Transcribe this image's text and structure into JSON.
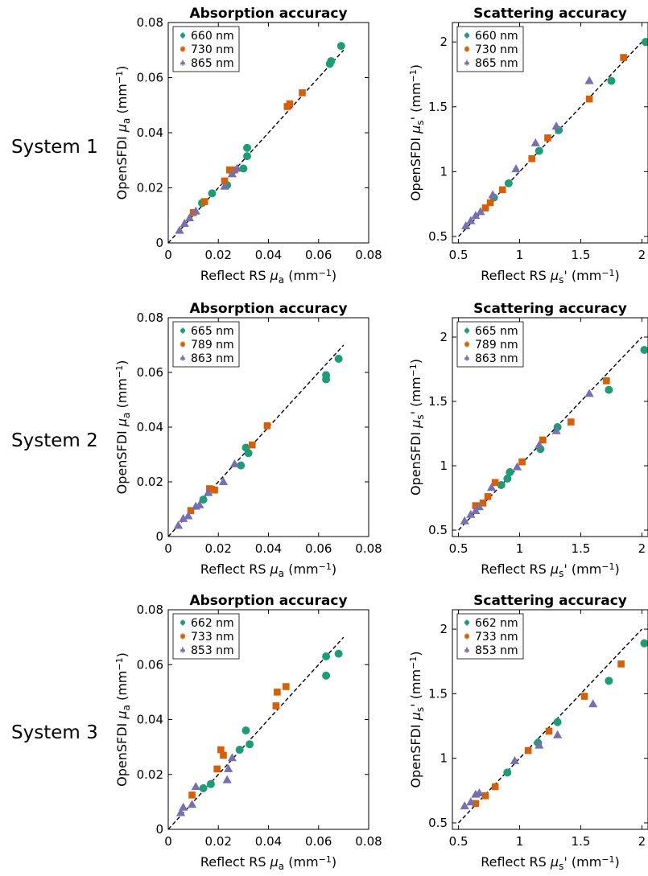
{
  "colors": {
    "s0": "#1b9e77",
    "s1": "#d95f02",
    "s2": "#7570b3"
  },
  "rows": [
    {
      "label": "System 1"
    },
    {
      "label": "System 2"
    },
    {
      "label": "System 3"
    }
  ],
  "chart_data": [
    {
      "type": "scatter",
      "row": 0,
      "kind": "absorption",
      "title": "Absorption accuracy",
      "xlabel": "Reflect RS μa (mm⁻¹)",
      "ylabel": "OpenSFDI μa (mm⁻¹)",
      "xlim": [
        0,
        0.08
      ],
      "ylim": [
        0,
        0.08
      ],
      "xticks": [
        0,
        0.02,
        0.04,
        0.06,
        0.08
      ],
      "xtick_labels": [
        "0",
        "0.02",
        "0.04",
        "0.06",
        "0.08"
      ],
      "yticks": [
        0,
        0.02,
        0.04,
        0.06,
        0.08
      ],
      "ytick_labels": [
        "0",
        "0.02",
        "0.04",
        "0.06",
        "0.08"
      ],
      "reference_line": [
        [
          0,
          0.07
        ],
        [
          0,
          0.07
        ]
      ],
      "legend": "top-left",
      "series": [
        {
          "name": "660 nm",
          "marker": "circle",
          "x": [
            0.0135,
            0.0175,
            0.0235,
            0.0255,
            0.03,
            0.0315,
            0.0315,
            0.0645,
            0.065,
            0.069
          ],
          "y": [
            0.0145,
            0.018,
            0.021,
            0.026,
            0.027,
            0.0315,
            0.0345,
            0.065,
            0.066,
            0.0715
          ]
        },
        {
          "name": "730 nm",
          "marker": "square",
          "x": [
            0.01,
            0.0145,
            0.0225,
            0.0245,
            0.0265,
            0.0475,
            0.0485,
            0.0535
          ],
          "y": [
            0.011,
            0.015,
            0.0225,
            0.0265,
            0.0265,
            0.0495,
            0.0505,
            0.0545
          ]
        },
        {
          "name": "865 nm",
          "marker": "triangle",
          "x": [
            0.0045,
            0.0065,
            0.0085,
            0.011,
            0.0225,
            0.0255,
            0.0275
          ],
          "y": [
            0.0045,
            0.007,
            0.009,
            0.0115,
            0.0205,
            0.025,
            0.027
          ]
        }
      ]
    },
    {
      "type": "scatter",
      "row": 0,
      "kind": "scattering",
      "title": "Scattering accuracy",
      "xlabel": "Reflect RS μs' (mm⁻¹)",
      "ylabel": "OpenSFDI μs' (mm⁻¹)",
      "xlim": [
        0.45,
        2.05
      ],
      "ylim": [
        0.45,
        2.15
      ],
      "xticks": [
        0.5,
        1,
        1.5,
        2
      ],
      "xtick_labels": [
        "0.5",
        "1",
        "1.5",
        "2"
      ],
      "yticks": [
        0.5,
        1,
        1.5,
        2
      ],
      "ytick_labels": [
        "0.5",
        "1",
        "1.5",
        "2"
      ],
      "reference_line": [
        [
          0.5,
          2.0
        ],
        [
          0.5,
          2.0
        ]
      ],
      "legend": "top-left",
      "series": [
        {
          "name": "660 nm",
          "marker": "circle",
          "x": [
            0.79,
            0.91,
            1.16,
            1.32,
            1.75,
            2.03
          ],
          "y": [
            0.8,
            0.91,
            1.16,
            1.32,
            1.7,
            2.0
          ]
        },
        {
          "name": "730 nm",
          "marker": "square",
          "x": [
            0.72,
            0.76,
            0.86,
            1.1,
            1.23,
            1.57,
            1.85
          ],
          "y": [
            0.72,
            0.76,
            0.86,
            1.1,
            1.26,
            1.56,
            1.88
          ]
        },
        {
          "name": "865 nm",
          "marker": "triangle",
          "x": [
            0.56,
            0.6,
            0.64,
            0.68,
            0.78,
            0.97,
            1.13,
            1.3,
            1.57
          ],
          "y": [
            0.58,
            0.62,
            0.66,
            0.69,
            0.82,
            1.02,
            1.22,
            1.35,
            1.7
          ]
        }
      ]
    },
    {
      "type": "scatter",
      "row": 1,
      "kind": "absorption",
      "title": "Absorption accuracy",
      "xlabel": "Reflect RS μa (mm⁻¹)",
      "ylabel": "OpenSFDI μa (mm⁻¹)",
      "xlim": [
        0,
        0.08
      ],
      "ylim": [
        0,
        0.08
      ],
      "xticks": [
        0,
        0.02,
        0.04,
        0.06,
        0.08
      ],
      "xtick_labels": [
        "0",
        "0.02",
        "0.04",
        "0.06",
        "0.08"
      ],
      "yticks": [
        0,
        0.02,
        0.04,
        0.06,
        0.08
      ],
      "ytick_labels": [
        "0",
        "0.02",
        "0.04",
        "0.06",
        "0.08"
      ],
      "reference_line": [
        [
          0,
          0.07
        ],
        [
          0,
          0.07
        ]
      ],
      "legend": "top-left",
      "series": [
        {
          "name": "665 nm",
          "marker": "circle",
          "x": [
            0.014,
            0.029,
            0.031,
            0.032,
            0.063,
            0.063,
            0.068
          ],
          "y": [
            0.0135,
            0.026,
            0.0325,
            0.0305,
            0.0575,
            0.059,
            0.065
          ]
        },
        {
          "name": "789 nm",
          "marker": "square",
          "x": [
            0.009,
            0.0165,
            0.0185,
            0.0335,
            0.0395
          ],
          "y": [
            0.0095,
            0.0175,
            0.017,
            0.0335,
            0.0405
          ]
        },
        {
          "name": "863 nm",
          "marker": "triangle",
          "x": [
            0.004,
            0.006,
            0.008,
            0.011,
            0.0125,
            0.016,
            0.022,
            0.0265
          ],
          "y": [
            0.004,
            0.0065,
            0.0075,
            0.011,
            0.0115,
            0.016,
            0.02,
            0.0265
          ]
        }
      ]
    },
    {
      "type": "scatter",
      "row": 1,
      "kind": "scattering",
      "title": "Scattering accuracy",
      "xlabel": "Reflect RS μs' (mm⁻¹)",
      "ylabel": "OpenSFDI μs' (mm⁻¹)",
      "xlim": [
        0.45,
        2.05
      ],
      "ylim": [
        0.45,
        2.15
      ],
      "xticks": [
        0.5,
        1,
        1.5,
        2
      ],
      "xtick_labels": [
        "0.5",
        "1",
        "1.5",
        "2"
      ],
      "yticks": [
        0.5,
        1,
        1.5,
        2
      ],
      "ytick_labels": [
        "0.5",
        "1",
        "1.5",
        "2"
      ],
      "reference_line": [
        [
          0.5,
          2.0
        ],
        [
          0.5,
          2.0
        ]
      ],
      "legend": "top-left",
      "series": [
        {
          "name": "665 nm",
          "marker": "circle",
          "x": [
            0.85,
            0.9,
            0.92,
            1.17,
            1.31,
            1.73,
            2.02
          ],
          "y": [
            0.85,
            0.9,
            0.95,
            1.13,
            1.3,
            1.59,
            1.9
          ]
        },
        {
          "name": "789 nm",
          "marker": "square",
          "x": [
            0.64,
            0.7,
            0.74,
            0.8,
            1.02,
            1.19,
            1.42,
            1.71
          ],
          "y": [
            0.69,
            0.71,
            0.76,
            0.87,
            1.03,
            1.2,
            1.34,
            1.66
          ]
        },
        {
          "name": "863 nm",
          "marker": "triangle",
          "x": [
            0.55,
            0.6,
            0.64,
            0.67,
            0.77,
            0.98,
            1.16,
            1.3,
            1.57
          ],
          "y": [
            0.57,
            0.62,
            0.65,
            0.68,
            0.83,
            0.99,
            1.16,
            1.27,
            1.56
          ]
        }
      ]
    },
    {
      "type": "scatter",
      "row": 2,
      "kind": "absorption",
      "title": "Absorption accuracy",
      "xlabel": "Reflect RS μa (mm⁻¹)",
      "ylabel": "OpenSFDI μa (mm⁻¹)",
      "xlim": [
        0,
        0.08
      ],
      "ylim": [
        0,
        0.08
      ],
      "xticks": [
        0,
        0.02,
        0.04,
        0.06,
        0.08
      ],
      "xtick_labels": [
        "0",
        "0.02",
        "0.04",
        "0.06",
        "0.08"
      ],
      "yticks": [
        0,
        0.02,
        0.04,
        0.06,
        0.08
      ],
      "ytick_labels": [
        "0",
        "0.02",
        "0.04",
        "0.06",
        "0.08"
      ],
      "reference_line": [
        [
          0,
          0.07
        ],
        [
          0,
          0.07
        ]
      ],
      "legend": "top-left",
      "series": [
        {
          "name": "662 nm",
          "marker": "circle",
          "x": [
            0.014,
            0.017,
            0.0285,
            0.031,
            0.0325,
            0.063,
            0.063,
            0.068
          ],
          "y": [
            0.015,
            0.0165,
            0.029,
            0.036,
            0.031,
            0.056,
            0.063,
            0.064
          ]
        },
        {
          "name": "733 nm",
          "marker": "square",
          "x": [
            0.0095,
            0.0195,
            0.021,
            0.022,
            0.043,
            0.0435,
            0.047
          ],
          "y": [
            0.0125,
            0.022,
            0.029,
            0.027,
            0.045,
            0.05,
            0.052
          ]
        },
        {
          "name": "853 nm",
          "marker": "triangle",
          "x": [
            0.005,
            0.006,
            0.0095,
            0.011,
            0.0235,
            0.024,
            0.0255
          ],
          "y": [
            0.006,
            0.008,
            0.009,
            0.0155,
            0.018,
            0.022,
            0.026
          ]
        }
      ]
    },
    {
      "type": "scatter",
      "row": 2,
      "kind": "scattering",
      "title": "Scattering accuracy",
      "xlabel": "Reflect RS μs' (mm⁻¹)",
      "ylabel": "OpenSFDI μs' (mm⁻¹)",
      "xlim": [
        0.45,
        2.05
      ],
      "ylim": [
        0.45,
        2.15
      ],
      "xticks": [
        0.5,
        1,
        1.5,
        2
      ],
      "xtick_labels": [
        "0.5",
        "1",
        "1.5",
        "2"
      ],
      "yticks": [
        0.5,
        1,
        1.5,
        2
      ],
      "ytick_labels": [
        "0.5",
        "1",
        "1.5",
        "2"
      ],
      "reference_line": [
        [
          0.5,
          2.0
        ],
        [
          0.5,
          2.0
        ]
      ],
      "legend": "top-left",
      "series": [
        {
          "name": "662 nm",
          "marker": "circle",
          "x": [
            0.9,
            1.15,
            1.31,
            1.73,
            2.02
          ],
          "y": [
            0.89,
            1.12,
            1.28,
            1.6,
            1.89
          ]
        },
        {
          "name": "733 nm",
          "marker": "square",
          "x": [
            0.64,
            0.72,
            0.8,
            1.07,
            1.24,
            1.53,
            1.83
          ],
          "y": [
            0.65,
            0.71,
            0.78,
            1.06,
            1.21,
            1.48,
            1.73
          ]
        },
        {
          "name": "853 nm",
          "marker": "triangle",
          "x": [
            0.55,
            0.6,
            0.64,
            0.67,
            0.96,
            1.16,
            1.31,
            1.6
          ],
          "y": [
            0.63,
            0.66,
            0.72,
            0.73,
            0.98,
            1.1,
            1.18,
            1.42
          ]
        }
      ]
    }
  ]
}
